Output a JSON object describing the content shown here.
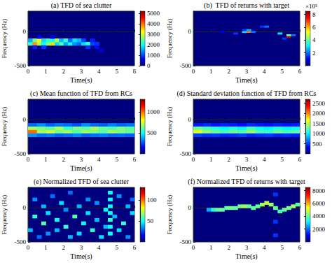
{
  "chart_data": [
    {
      "type": "heatmap",
      "title": "(a) TFD of sea clutter",
      "x_label": "Time(s)",
      "y_label": "Frequency (Hz)",
      "xlim": [
        0,
        6
      ],
      "xticks": [
        0,
        1,
        2,
        3,
        4,
        5,
        6
      ],
      "ylim": [
        -500,
        300
      ],
      "yticks": [
        -500,
        0
      ],
      "cell_size": [
        0.25,
        50
      ],
      "cells": [
        [
          0.125,
          -175,
          2200
        ],
        [
          0.125,
          -125,
          1500
        ],
        [
          0.375,
          -175,
          3800
        ],
        [
          0.375,
          -125,
          2500
        ],
        [
          0.375,
          -225,
          800
        ],
        [
          0.625,
          -175,
          2800
        ],
        [
          0.625,
          -125,
          3200
        ],
        [
          0.625,
          -75,
          600
        ],
        [
          0.875,
          -175,
          2000
        ],
        [
          0.875,
          -125,
          1800
        ],
        [
          0.875,
          -225,
          900
        ],
        [
          1.125,
          -175,
          2600
        ],
        [
          1.125,
          -125,
          2200
        ],
        [
          1.375,
          -175,
          3400
        ],
        [
          1.375,
          -125,
          2000
        ],
        [
          1.375,
          -75,
          500
        ],
        [
          1.625,
          -175,
          1800
        ],
        [
          1.625,
          -125,
          2800
        ],
        [
          1.875,
          -175,
          2400
        ],
        [
          1.875,
          -125,
          1600
        ],
        [
          2.125,
          -175,
          1500
        ],
        [
          2.125,
          -125,
          2200
        ],
        [
          2.375,
          -175,
          2000
        ],
        [
          2.375,
          -125,
          1200
        ],
        [
          2.625,
          -175,
          1400
        ],
        [
          2.625,
          -125,
          1800
        ],
        [
          2.875,
          -175,
          1200
        ],
        [
          2.875,
          -125,
          1600
        ],
        [
          3.125,
          -175,
          1800
        ],
        [
          3.125,
          -125,
          1000
        ],
        [
          3.375,
          -175,
          2200
        ],
        [
          3.375,
          -225,
          900
        ],
        [
          3.625,
          -175,
          1000
        ],
        [
          3.625,
          -125,
          800
        ],
        [
          3.875,
          -225,
          700
        ],
        [
          3.875,
          -175,
          900
        ],
        [
          4.125,
          -275,
          400
        ]
      ],
      "colorbar_range": [
        0,
        5200
      ],
      "colorbar_ticks": [
        0,
        1000,
        2000,
        3000,
        4000,
        5000
      ]
    },
    {
      "type": "heatmap",
      "title": "(b)  TFD of returns with target",
      "x_label": "Time(s)",
      "y_label": "Frequency (Hz)",
      "xlim": [
        0,
        6
      ],
      "xticks": [
        0,
        1,
        2,
        3,
        4,
        5,
        6
      ],
      "ylim": [
        -500,
        300
      ],
      "yticks": [
        -500,
        0
      ],
      "cell_size": [
        0.25,
        25
      ],
      "cells": [
        [
          1.625,
          0,
          0.8
        ],
        [
          2.375,
          -25,
          1.5
        ],
        [
          2.875,
          0,
          3.0
        ],
        [
          2.875,
          25,
          1.5
        ],
        [
          3.125,
          0,
          6.5
        ],
        [
          3.125,
          25,
          2.5
        ],
        [
          3.375,
          0,
          2.0
        ],
        [
          3.875,
          75,
          1.5
        ],
        [
          4.125,
          75,
          2.0
        ],
        [
          4.875,
          -25,
          3.0
        ],
        [
          5.125,
          -100,
          1.5
        ],
        [
          5.375,
          -75,
          8.0
        ],
        [
          5.375,
          -50,
          4.0
        ],
        [
          5.625,
          -50,
          2.0
        ]
      ],
      "colorbar_range": [
        0,
        8.5
      ],
      "colorbar_ticks": [
        2,
        4,
        6,
        8
      ],
      "colorbar_label": "×10⁵"
    },
    {
      "type": "heatmap",
      "title": "(c) Mean function of TFD from RCs",
      "x_label": "Time(s)",
      "y_label": "Frequency (Hz)",
      "xlim": [
        0,
        6
      ],
      "xticks": [
        0,
        1,
        2,
        3,
        4,
        5,
        6
      ],
      "ylim": [
        -500,
        300
      ],
      "yticks": [
        -500,
        0
      ],
      "cell_size": [
        0.5,
        50
      ],
      "cells": [
        [
          0.25,
          -75,
          300
        ],
        [
          0.75,
          -75,
          350
        ],
        [
          1.25,
          -75,
          280
        ],
        [
          1.75,
          -75,
          320
        ],
        [
          2.25,
          -75,
          300
        ],
        [
          2.75,
          -75,
          260
        ],
        [
          3.25,
          -75,
          340
        ],
        [
          3.75,
          -75,
          300
        ],
        [
          4.25,
          -75,
          280
        ],
        [
          4.75,
          -75,
          320
        ],
        [
          5.25,
          -75,
          290
        ],
        [
          5.75,
          -75,
          310
        ],
        [
          0.25,
          -125,
          700
        ],
        [
          0.75,
          -125,
          650
        ],
        [
          1.25,
          -125,
          600
        ],
        [
          1.75,
          -125,
          700
        ],
        [
          2.25,
          -125,
          550
        ],
        [
          2.75,
          -125,
          650
        ],
        [
          3.25,
          -125,
          600
        ],
        [
          3.75,
          -125,
          700
        ],
        [
          4.25,
          -125,
          620
        ],
        [
          4.75,
          -125,
          580
        ],
        [
          5.25,
          -125,
          640
        ],
        [
          5.75,
          -125,
          600
        ],
        [
          0.25,
          -175,
          1000
        ],
        [
          0.75,
          -175,
          700
        ],
        [
          1.25,
          -175,
          750
        ],
        [
          1.75,
          -175,
          650
        ],
        [
          2.25,
          -175,
          700
        ],
        [
          2.75,
          -175,
          600
        ],
        [
          3.25,
          -175,
          700
        ],
        [
          3.75,
          -175,
          650
        ],
        [
          4.25,
          -175,
          600
        ],
        [
          4.75,
          -175,
          700
        ],
        [
          5.25,
          -175,
          650
        ],
        [
          5.75,
          -175,
          620
        ],
        [
          0.25,
          -225,
          350
        ],
        [
          0.75,
          -225,
          300
        ],
        [
          1.25,
          -225,
          320
        ],
        [
          1.75,
          -225,
          280
        ],
        [
          2.25,
          -225,
          300
        ],
        [
          2.75,
          -225,
          330
        ],
        [
          3.25,
          -225,
          280
        ],
        [
          3.75,
          -225,
          300
        ],
        [
          4.25,
          -225,
          320
        ],
        [
          4.75,
          -225,
          290
        ],
        [
          5.25,
          -225,
          300
        ],
        [
          5.75,
          -225,
          280
        ]
      ],
      "colorbar_range": [
        0,
        1300
      ],
      "colorbar_ticks": [
        500,
        1000
      ]
    },
    {
      "type": "heatmap",
      "title": "(d) Standard deviation function of TFD from RCs",
      "x_label": "Time(s)",
      "y_label": "Frequency (Hz)",
      "xlim": [
        0,
        6
      ],
      "xticks": [
        0,
        1,
        2,
        3,
        4,
        5,
        6
      ],
      "ylim": [
        -500,
        300
      ],
      "yticks": [
        -500,
        0
      ],
      "cell_size": [
        0.5,
        50
      ],
      "cells": [
        [
          0.25,
          -75,
          400
        ],
        [
          0.75,
          -75,
          450
        ],
        [
          1.25,
          -75,
          380
        ],
        [
          1.75,
          -75,
          420
        ],
        [
          2.25,
          -75,
          400
        ],
        [
          2.75,
          -75,
          360
        ],
        [
          3.25,
          -75,
          440
        ],
        [
          3.75,
          -75,
          400
        ],
        [
          4.25,
          -75,
          380
        ],
        [
          4.75,
          -75,
          420
        ],
        [
          5.25,
          -75,
          390
        ],
        [
          5.75,
          -75,
          410
        ],
        [
          0.25,
          -125,
          1300
        ],
        [
          0.75,
          -125,
          1200
        ],
        [
          1.25,
          -125,
          1100
        ],
        [
          1.75,
          -125,
          1000
        ],
        [
          2.25,
          -125,
          1100
        ],
        [
          2.75,
          -125,
          1000
        ],
        [
          3.25,
          -125,
          1200
        ],
        [
          3.75,
          -125,
          1050
        ],
        [
          4.25,
          -125,
          1000
        ],
        [
          4.75,
          -125,
          1100
        ],
        [
          5.25,
          -125,
          1000
        ],
        [
          5.75,
          -125,
          1050
        ],
        [
          0.25,
          -175,
          1600
        ],
        [
          0.75,
          -175,
          1400
        ],
        [
          1.25,
          -175,
          1300
        ],
        [
          1.75,
          -175,
          1200
        ],
        [
          2.25,
          -175,
          1300
        ],
        [
          2.75,
          -175,
          1250
        ],
        [
          3.25,
          -175,
          1400
        ],
        [
          3.75,
          -175,
          1200
        ],
        [
          4.25,
          -175,
          1150
        ],
        [
          4.75,
          -175,
          1300
        ],
        [
          5.25,
          -175,
          1200
        ],
        [
          5.75,
          -175,
          1250
        ],
        [
          0.25,
          -225,
          500
        ],
        [
          0.75,
          -225,
          450
        ],
        [
          1.25,
          -225,
          480
        ],
        [
          1.75,
          -225,
          420
        ],
        [
          2.25,
          -225,
          450
        ],
        [
          2.75,
          -225,
          500
        ],
        [
          3.25,
          -225,
          420
        ],
        [
          3.75,
          -225,
          450
        ],
        [
          4.25,
          -225,
          480
        ],
        [
          4.75,
          -225,
          430
        ],
        [
          5.25,
          -225,
          450
        ],
        [
          5.75,
          -225,
          420
        ]
      ],
      "colorbar_range": [
        0,
        2700
      ],
      "colorbar_ticks": [
        500,
        1000,
        1500,
        2000,
        2500
      ]
    },
    {
      "type": "heatmap",
      "title": "(e) Normalized TFD of sea clutter",
      "x_label": "Time(s)",
      "y_label": "Frequency (Hz)",
      "xlim": [
        0,
        6
      ],
      "xticks": [
        0,
        1,
        2,
        3,
        4,
        5,
        6
      ],
      "ylim": [
        -500,
        300
      ],
      "yticks": [
        -500,
        0
      ],
      "cell_size": [
        0.25,
        50
      ],
      "cells": [
        [
          0.125,
          -325,
          40
        ],
        [
          0.375,
          -125,
          55
        ],
        [
          0.375,
          125,
          35
        ],
        [
          0.625,
          -425,
          30
        ],
        [
          0.875,
          -225,
          60
        ],
        [
          0.875,
          25,
          40
        ],
        [
          1.125,
          -75,
          45
        ],
        [
          1.125,
          -375,
          35
        ],
        [
          1.375,
          175,
          30
        ],
        [
          1.625,
          -175,
          50
        ],
        [
          1.625,
          -325,
          40
        ],
        [
          1.875,
          75,
          45
        ],
        [
          2.125,
          -275,
          55
        ],
        [
          2.125,
          -25,
          35
        ],
        [
          2.375,
          -425,
          40
        ],
        [
          2.375,
          225,
          30
        ],
        [
          2.625,
          -125,
          60
        ],
        [
          2.875,
          25,
          40
        ],
        [
          2.875,
          -375,
          45
        ],
        [
          3.125,
          -225,
          50
        ],
        [
          3.375,
          125,
          35
        ],
        [
          3.375,
          -75,
          45
        ],
        [
          3.625,
          -325,
          55
        ],
        [
          3.875,
          -175,
          40
        ],
        [
          3.875,
          75,
          35
        ],
        [
          4.125,
          -425,
          45
        ],
        [
          4.375,
          -25,
          50
        ],
        [
          4.375,
          -275,
          40
        ],
        [
          4.625,
          -375,
          50
        ],
        [
          4.625,
          -275,
          50
        ],
        [
          4.625,
          -175,
          55
        ],
        [
          4.625,
          -75,
          50
        ],
        [
          4.625,
          25,
          50
        ],
        [
          4.625,
          125,
          50
        ],
        [
          4.625,
          225,
          50
        ],
        [
          4.875,
          -125,
          40
        ],
        [
          5.125,
          175,
          35
        ],
        [
          5.125,
          -325,
          45
        ],
        [
          5.375,
          -225,
          55
        ],
        [
          5.625,
          25,
          40
        ],
        [
          5.625,
          -425,
          35
        ],
        [
          5.875,
          -75,
          45
        ],
        [
          5.875,
          125,
          30
        ]
      ],
      "colorbar_range": [
        0,
        130
      ],
      "colorbar_ticks": [
        50,
        100
      ]
    },
    {
      "type": "heatmap",
      "title": "(f) Normalized TFD of returns with target",
      "x_label": "Time(s)",
      "y_label": "Frequency (Hz)",
      "xlim": [
        0,
        6
      ],
      "xticks": [
        0,
        1,
        2,
        3,
        4,
        5,
        6
      ],
      "ylim": [
        -500,
        300
      ],
      "yticks": [
        -500,
        0
      ],
      "cell_size": [
        0.25,
        50
      ],
      "cells": [
        [
          0.875,
          -25,
          2500
        ],
        [
          1.125,
          -25,
          3500
        ],
        [
          1.375,
          -25,
          4000
        ],
        [
          1.625,
          -25,
          4000
        ],
        [
          1.875,
          0,
          4000
        ],
        [
          2.125,
          0,
          4200
        ],
        [
          2.375,
          0,
          4000
        ],
        [
          2.625,
          25,
          4200
        ],
        [
          2.875,
          25,
          4500
        ],
        [
          3.125,
          25,
          4000
        ],
        [
          3.375,
          0,
          4000
        ],
        [
          3.625,
          25,
          4000
        ],
        [
          3.875,
          50,
          4500
        ],
        [
          4.125,
          75,
          4800
        ],
        [
          4.375,
          50,
          4500
        ],
        [
          4.625,
          0,
          4000
        ],
        [
          4.625,
          200,
          1500
        ],
        [
          4.625,
          -200,
          1500
        ],
        [
          4.625,
          -400,
          1500
        ],
        [
          4.875,
          -50,
          3800
        ],
        [
          5.125,
          -25,
          4000
        ],
        [
          5.375,
          0,
          4200
        ],
        [
          5.625,
          25,
          4500
        ],
        [
          5.875,
          50,
          4000
        ]
      ],
      "colorbar_range": [
        0,
        8500
      ],
      "colorbar_ticks": [
        2000,
        4000,
        6000,
        8000
      ]
    }
  ]
}
